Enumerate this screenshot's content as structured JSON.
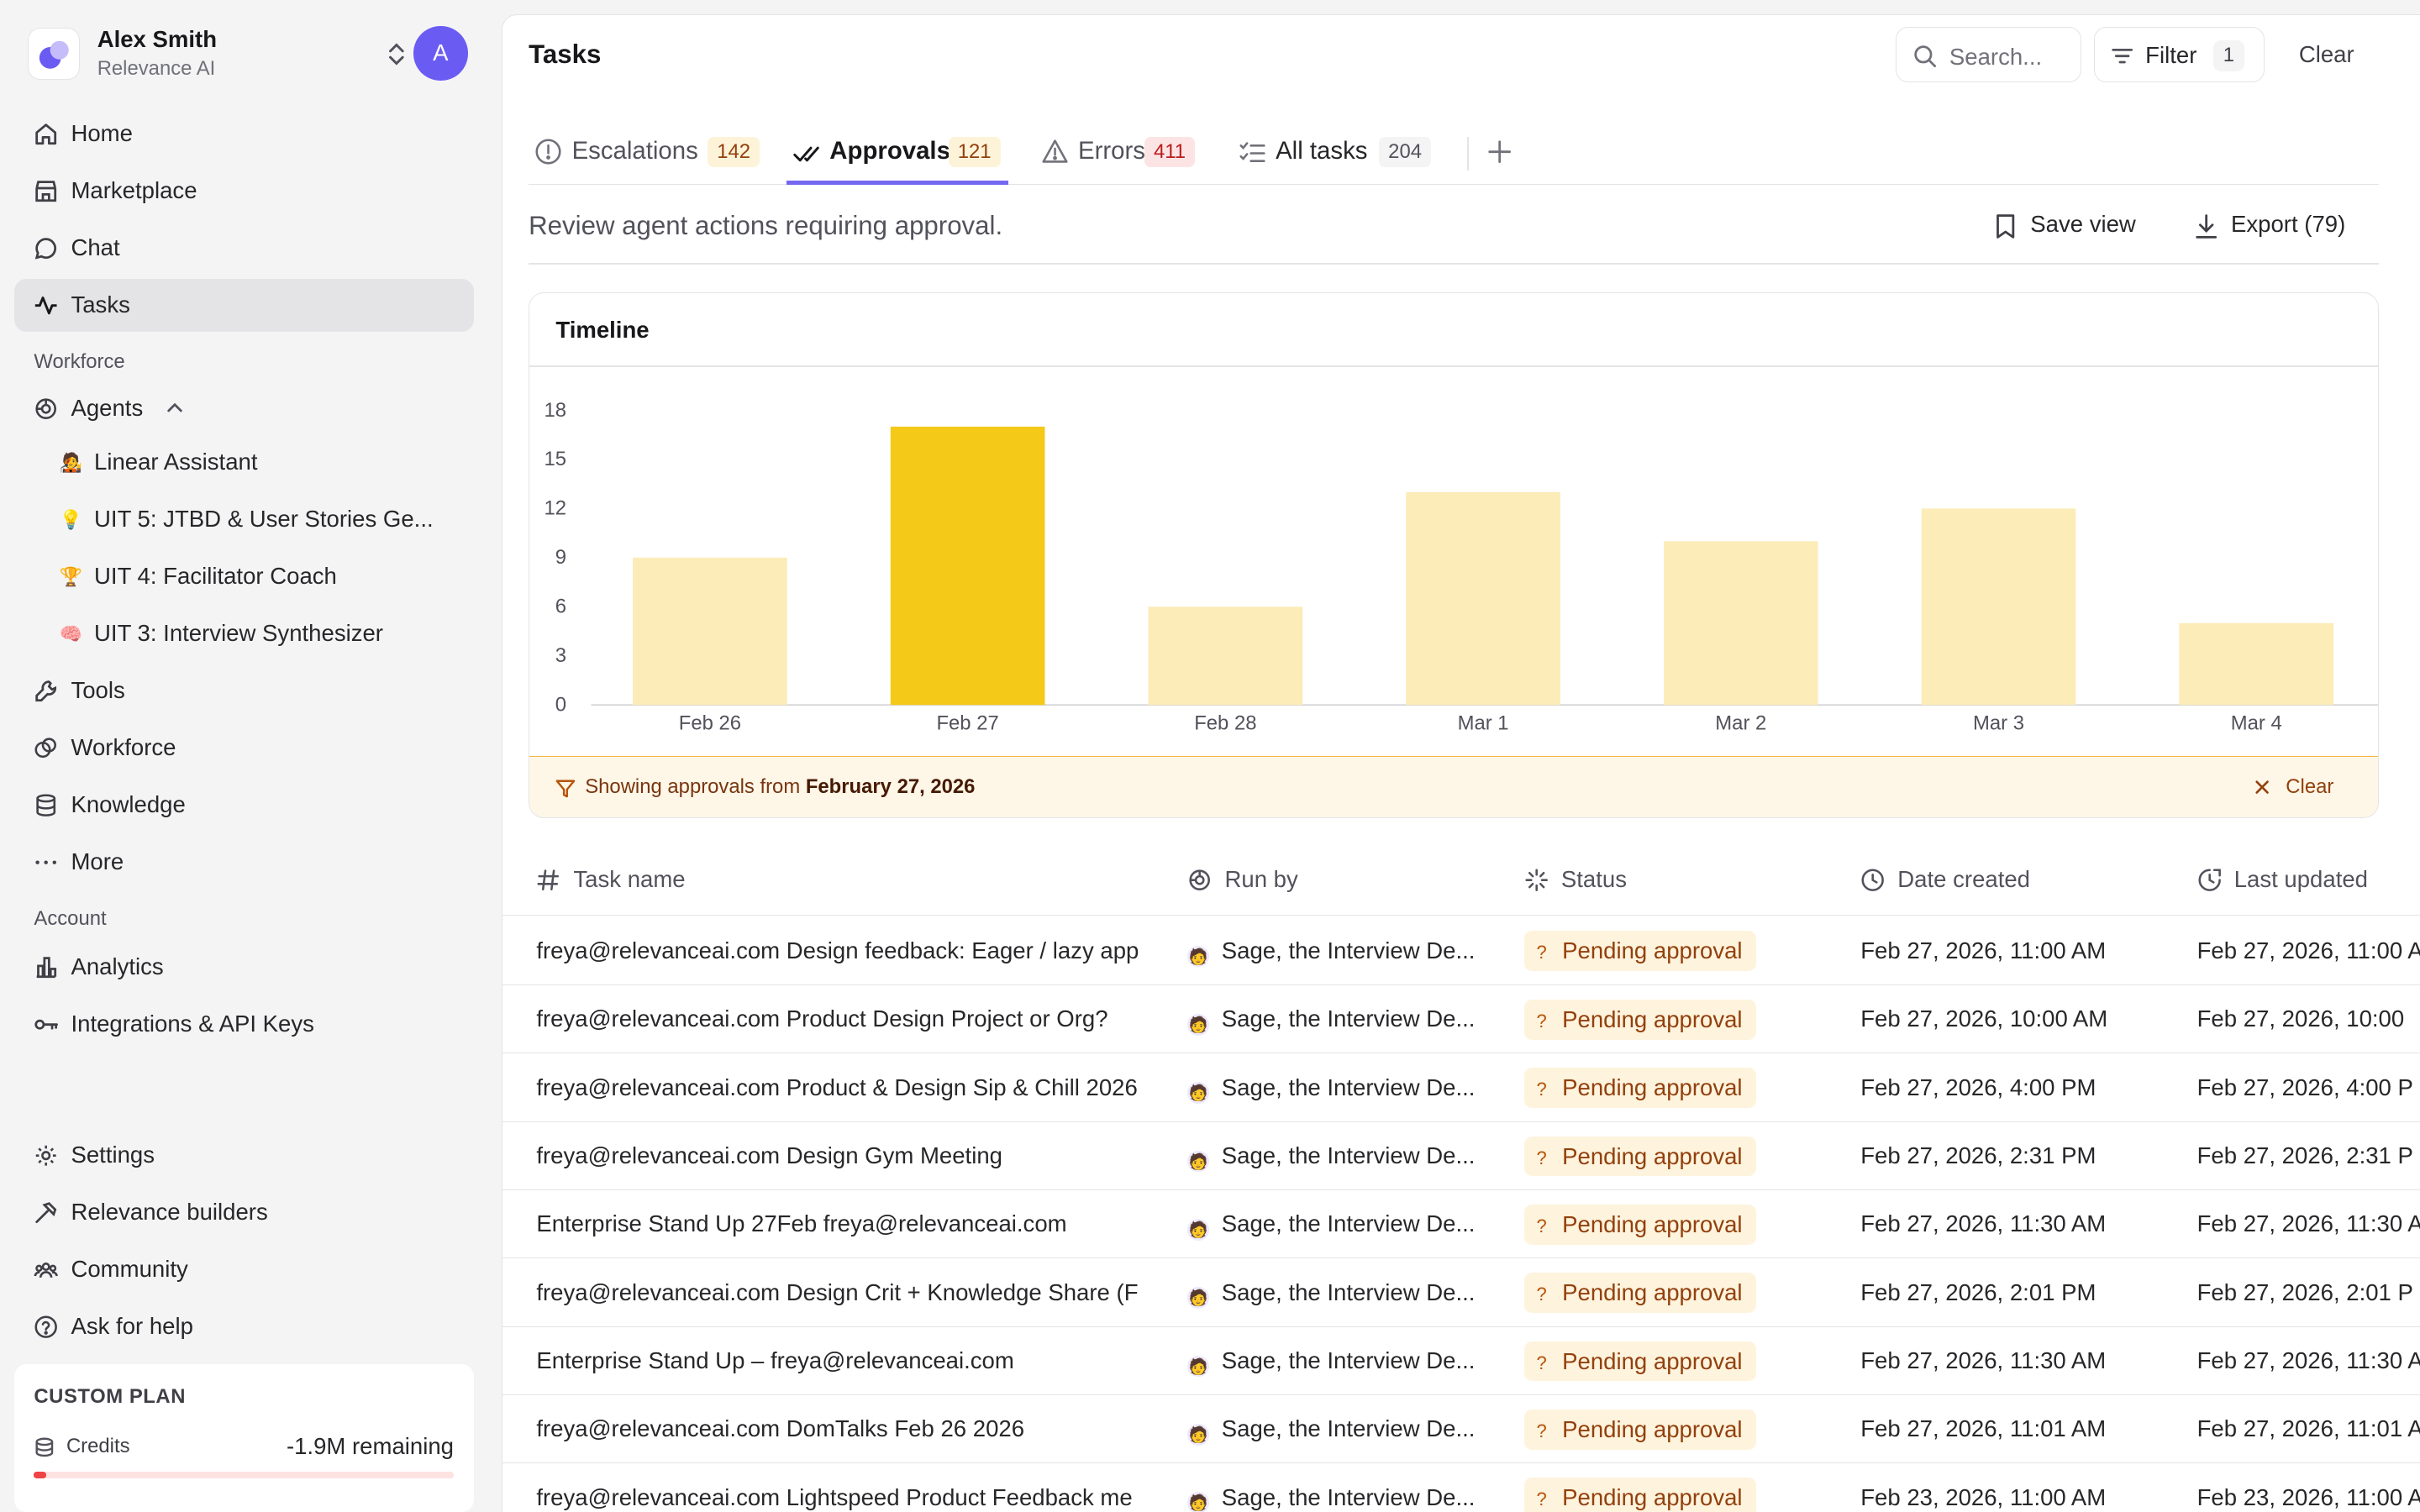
{
  "account": {
    "name": "Alex Smith",
    "org": "Relevance AI",
    "avatar": "A"
  },
  "nav_main": [
    {
      "label": "Home",
      "icon": "home-icon"
    },
    {
      "label": "Marketplace",
      "icon": "store-icon"
    },
    {
      "label": "Chat",
      "icon": "chat-icon"
    },
    {
      "label": "Tasks",
      "icon": "activity-icon"
    }
  ],
  "sections": {
    "workforce": "Workforce",
    "account": "Account"
  },
  "agents": {
    "label": "Agents",
    "items": [
      {
        "emoji": "🧑‍🎤",
        "label": "Linear Assistant"
      },
      {
        "emoji": "💡",
        "label": "UIT 5: JTBD & User Stories Ge..."
      },
      {
        "emoji": "🏆",
        "label": "UIT 4: Facilitator Coach"
      },
      {
        "emoji": "🧠",
        "label": "UIT 3: Interview Synthesizer"
      }
    ]
  },
  "nav_more": [
    {
      "label": "Tools"
    },
    {
      "label": "Workforce"
    },
    {
      "label": "Knowledge"
    },
    {
      "label": "More"
    }
  ],
  "nav_account": [
    {
      "label": "Analytics"
    },
    {
      "label": "Integrations & API Keys"
    }
  ],
  "nav_bottom": [
    {
      "label": "Settings"
    },
    {
      "label": "Relevance builders"
    },
    {
      "label": "Community"
    },
    {
      "label": "Ask for help"
    }
  ],
  "plan": {
    "title": "CUSTOM PLAN",
    "credits_label": "Credits",
    "remaining": "-1.9M remaining",
    "usage_fraction": 0.03
  },
  "header": {
    "title": "Tasks",
    "search_placeholder": "Search...",
    "filter_label": "Filter",
    "filter_count": "1",
    "clear_label": "Clear"
  },
  "tabs": [
    {
      "label": "Escalations",
      "count": "142"
    },
    {
      "label": "Approvals",
      "count": "121"
    },
    {
      "label": "Errors",
      "count": "411"
    },
    {
      "label": "All tasks",
      "count": "204"
    }
  ],
  "description": "Review agent actions requiring approval.",
  "actions": {
    "save_view": "Save view",
    "export": "Export (79)"
  },
  "chart": {
    "title": "Timeline",
    "note_prefix": "Showing approvals from ",
    "note_date": "February 27, 2026",
    "note_clear": "Clear"
  },
  "chart_data": {
    "type": "bar",
    "categories": [
      "Feb 26",
      "Feb 27",
      "Feb 28",
      "Mar 1",
      "Mar 2",
      "Mar 3",
      "Mar 4"
    ],
    "values": [
      9,
      17,
      6,
      13,
      10,
      12,
      5
    ],
    "selected_category": "Feb 27",
    "y_ticks": [
      0,
      3,
      6,
      9,
      12,
      15,
      18
    ],
    "ylim": [
      0,
      18
    ],
    "colors": {
      "bar": "#fcecb8",
      "selected": "#f5c918"
    }
  },
  "table": {
    "columns": [
      "Task name",
      "Run by",
      "Status",
      "Date created",
      "Last updated"
    ],
    "rows": [
      {
        "task": "freya@relevanceai.com Design feedback: Eager / lazy app",
        "run_by": "Sage, the Interview De...",
        "status": "Pending approval",
        "created": "Feb 27, 2026, 11:00 AM",
        "updated": "Feb 27, 2026, 11:00 A"
      },
      {
        "task": "freya@relevanceai.com Product Design Project or Org?",
        "run_by": "Sage, the Interview De...",
        "status": "Pending approval",
        "created": "Feb 27, 2026, 10:00 AM",
        "updated": "Feb 27, 2026, 10:00"
      },
      {
        "task": "freya@relevanceai.com Product & Design Sip & Chill 2026",
        "run_by": "Sage, the Interview De...",
        "status": "Pending approval",
        "created": "Feb 27, 2026, 4:00 PM",
        "updated": "Feb 27, 2026, 4:00 P"
      },
      {
        "task": "freya@relevanceai.com Design Gym Meeting",
        "run_by": "Sage, the Interview De...",
        "status": "Pending approval",
        "created": "Feb 27, 2026, 2:31 PM",
        "updated": "Feb 27, 2026, 2:31 P"
      },
      {
        "task": "Enterprise Stand Up 27Feb freya@relevanceai.com",
        "run_by": "Sage, the Interview De...",
        "status": "Pending approval",
        "created": "Feb 27, 2026, 11:30 AM",
        "updated": "Feb 27, 2026, 11:30 A"
      },
      {
        "task": "freya@relevanceai.com Design Crit + Knowledge Share (F",
        "run_by": "Sage, the Interview De...",
        "status": "Pending approval",
        "created": "Feb 27, 2026, 2:01 PM",
        "updated": "Feb 27, 2026, 2:01 P"
      },
      {
        "task": "Enterprise Stand Up – freya@relevanceai.com",
        "run_by": "Sage, the Interview De...",
        "status": "Pending approval",
        "created": "Feb 27, 2026, 11:30 AM",
        "updated": "Feb 27, 2026, 11:30 A"
      },
      {
        "task": "freya@relevanceai.com DomTalks Feb 26 2026",
        "run_by": "Sage, the Interview De...",
        "status": "Pending approval",
        "created": "Feb 27, 2026, 11:01 AM",
        "updated": "Feb 27, 2026, 11:01 A"
      },
      {
        "task": "freya@relevanceai.com Lightspeed Product Feedback me",
        "run_by": "Sage, the Interview De...",
        "status": "Pending approval",
        "created": "Feb 23, 2026, 11:00 AM",
        "updated": "Feb 23, 2026, 11:00 A"
      }
    ]
  }
}
